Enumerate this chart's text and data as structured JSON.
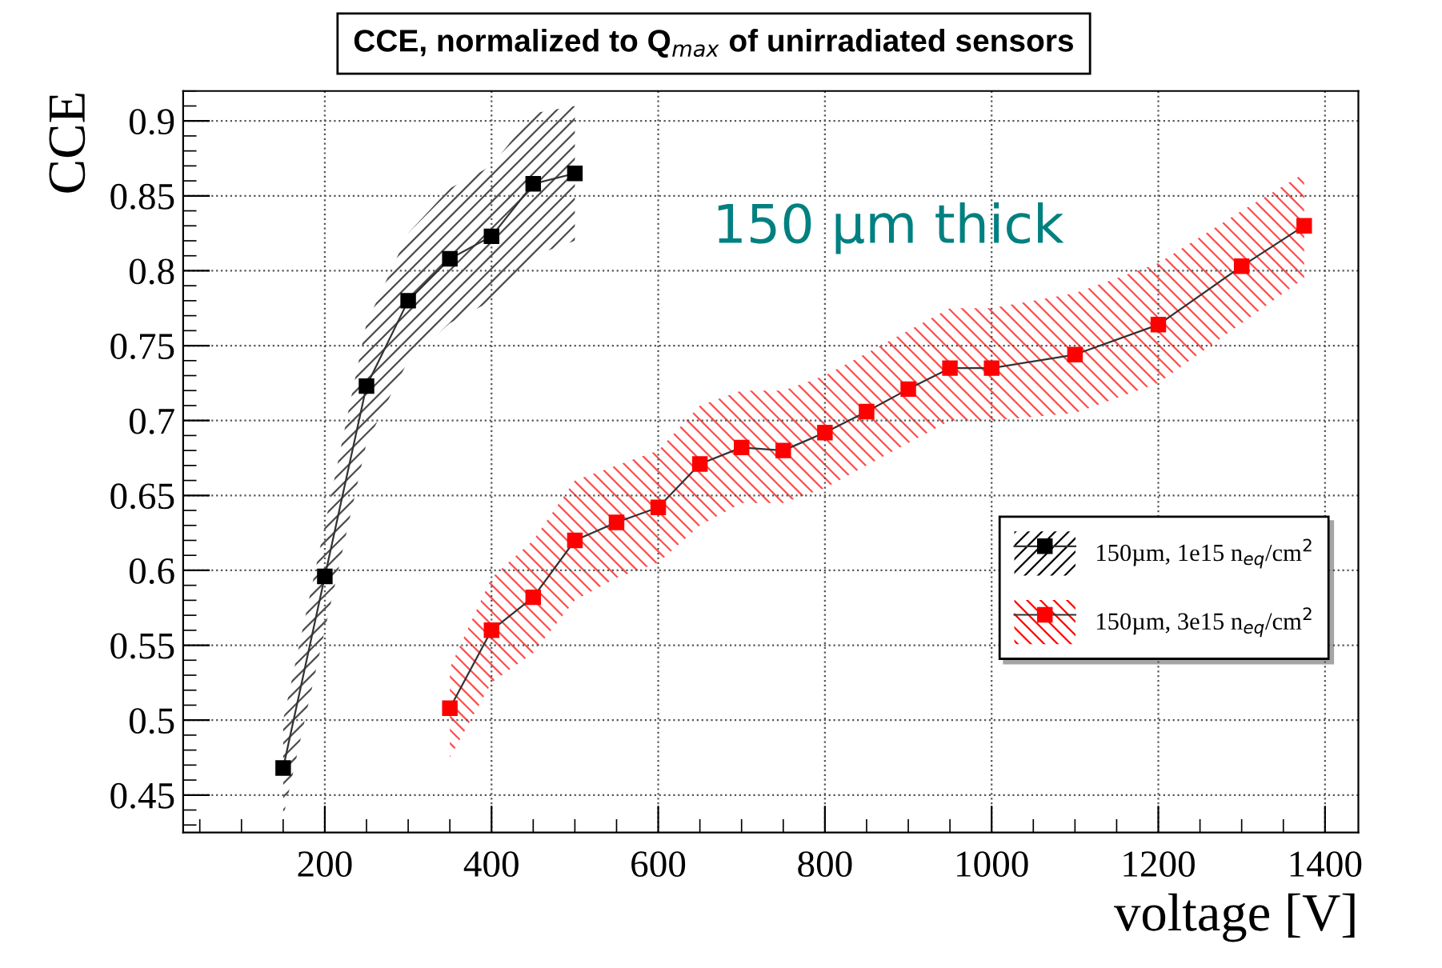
{
  "chart_data": {
    "type": "line",
    "title": "CCE, normalized to Q$_{max}$ of unirradiated sensors",
    "xlabel": "voltage [V]",
    "ylabel": "CCE",
    "annotations": [
      "150 µm thick"
    ],
    "xlim": [
      30,
      1440
    ],
    "xticks": [
      200,
      400,
      600,
      800,
      1000,
      1200,
      1400
    ],
    "ylim": [
      0.425,
      0.92
    ],
    "yticks": [
      0.45,
      0.5,
      0.55,
      0.6,
      0.65,
      0.7,
      0.75,
      0.8,
      0.85,
      0.9
    ],
    "grid": true,
    "legend": "right",
    "marker": "square",
    "line_style": "solid",
    "series": [
      {
        "name": "150µm, 1e15 n$_{eq}$/cm$^{2}$",
        "color": "#000000",
        "x": [
          150,
          200,
          250,
          300,
          350,
          400,
          450,
          500
        ],
        "values": [
          0.468,
          0.596,
          0.723,
          0.78,
          0.808,
          0.823,
          0.858,
          0.865
        ],
        "lower": [
          0.435,
          0.56,
          0.685,
          0.74,
          0.765,
          0.78,
          0.81,
          0.82
        ],
        "upper": [
          0.5,
          0.63,
          0.765,
          0.825,
          0.855,
          0.87,
          0.905,
          0.91
        ]
      },
      {
        "name": "150µm, 3e15 n$_{eq}$/cm$^{2}$",
        "color": "#ff0000",
        "x": [
          350,
          400,
          450,
          500,
          550,
          600,
          650,
          700,
          750,
          800,
          850,
          900,
          950,
          1000,
          1100,
          1200,
          1300,
          1375
        ],
        "values": [
          0.508,
          0.56,
          0.582,
          0.62,
          0.632,
          0.642,
          0.671,
          0.682,
          0.68,
          0.692,
          0.706,
          0.721,
          0.735,
          0.735,
          0.744,
          0.764,
          0.803,
          0.83
        ],
        "lower": [
          0.475,
          0.525,
          0.545,
          0.58,
          0.595,
          0.605,
          0.63,
          0.645,
          0.645,
          0.655,
          0.67,
          0.685,
          0.7,
          0.7,
          0.705,
          0.725,
          0.765,
          0.795
        ],
        "upper": [
          0.535,
          0.595,
          0.62,
          0.66,
          0.67,
          0.68,
          0.71,
          0.72,
          0.72,
          0.73,
          0.745,
          0.76,
          0.775,
          0.775,
          0.785,
          0.805,
          0.84,
          0.865
        ]
      }
    ]
  }
}
